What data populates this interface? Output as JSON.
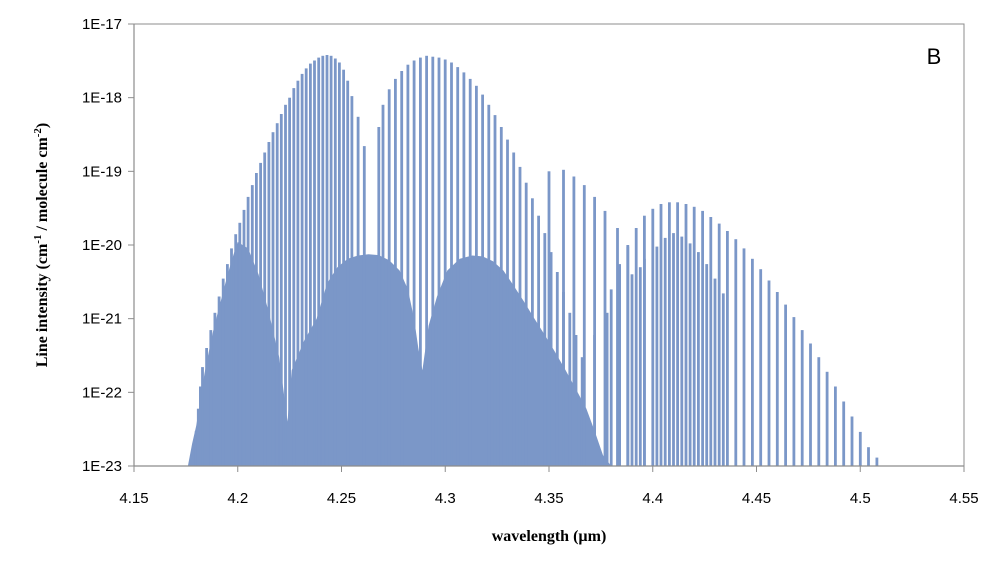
{
  "chart_data": {
    "type": "bar",
    "title": "",
    "panel_label": "B",
    "xlabel": "wavelength (µm)",
    "ylabel": "Line intensity (cm",
    "ylabel_sup1": "-1",
    "ylabel_mid": " / molecule cm",
    "ylabel_sup2": "-2",
    "ylabel_end": ")",
    "x_scale": "linear",
    "y_scale": "log",
    "xlim": [
      4.15,
      4.55
    ],
    "ylim": [
      1e-23,
      1e-17
    ],
    "x_ticks": [
      4.15,
      4.2,
      4.25,
      4.3,
      4.35,
      4.4,
      4.45,
      4.5,
      4.55
    ],
    "x_tick_labels": [
      "4.15",
      "4.2",
      "4.25",
      "4.3",
      "4.35",
      "4.4",
      "4.45",
      "4.5",
      "4.55"
    ],
    "y_ticks": [
      1e-23,
      1e-22,
      1e-21,
      1e-20,
      1e-19,
      1e-18,
      1e-17
    ],
    "y_tick_labels": [
      "1E-23",
      "1E-22",
      "1E-21",
      "1E-20",
      "1E-19",
      "1E-18",
      "1E-17"
    ],
    "grid": false,
    "bar_color": "#7b97c8",
    "series": [
      {
        "values": [
          [
            4.18,
            3e-23
          ],
          [
            4.181,
            6e-23
          ],
          [
            4.182,
            1.2e-22
          ],
          [
            4.183,
            2.2e-22
          ],
          [
            4.185,
            4e-22
          ],
          [
            4.187,
            7e-22
          ],
          [
            4.189,
            1.2e-21
          ],
          [
            4.191,
            2e-21
          ],
          [
            4.193,
            3.5e-21
          ],
          [
            4.195,
            5.5e-21
          ],
          [
            4.197,
            9e-21
          ],
          [
            4.199,
            1.4e-20
          ],
          [
            4.201,
            2e-20
          ],
          [
            4.203,
            3e-20
          ],
          [
            4.205,
            4.5e-20
          ],
          [
            4.207,
            6.5e-20
          ],
          [
            4.209,
            9.5e-20
          ],
          [
            4.211,
            1.3e-19
          ],
          [
            4.213,
            1.8e-19
          ],
          [
            4.215,
            2.5e-19
          ],
          [
            4.217,
            3.4e-19
          ],
          [
            4.219,
            4.5e-19
          ],
          [
            4.221,
            6e-19
          ],
          [
            4.223,
            8e-19
          ],
          [
            4.225,
            1e-18
          ],
          [
            4.227,
            1.35e-18
          ],
          [
            4.229,
            1.7e-18
          ],
          [
            4.231,
            2.1e-18
          ],
          [
            4.233,
            2.5e-18
          ],
          [
            4.235,
            2.9e-18
          ],
          [
            4.237,
            3.2e-18
          ],
          [
            4.239,
            3.5e-18
          ],
          [
            4.241,
            3.7e-18
          ],
          [
            4.243,
            3.8e-18
          ],
          [
            4.245,
            3.7e-18
          ],
          [
            4.247,
            3.4e-18
          ],
          [
            4.249,
            3e-18
          ],
          [
            4.251,
            2.4e-18
          ],
          [
            4.253,
            1.7e-18
          ],
          [
            4.255,
            1.05e-18
          ],
          [
            4.258,
            5.5e-19
          ],
          [
            4.261,
            2.2e-19
          ],
          [
            4.268,
            4e-19
          ],
          [
            4.27,
            8e-19
          ],
          [
            4.273,
            1.3e-18
          ],
          [
            4.276,
            1.8e-18
          ],
          [
            4.279,
            2.3e-18
          ],
          [
            4.282,
            2.8e-18
          ],
          [
            4.285,
            3.2e-18
          ],
          [
            4.288,
            3.5e-18
          ],
          [
            4.291,
            3.7e-18
          ],
          [
            4.294,
            3.6e-18
          ],
          [
            4.297,
            3.5e-18
          ],
          [
            4.3,
            3.3e-18
          ],
          [
            4.303,
            3e-18
          ],
          [
            4.306,
            2.6e-18
          ],
          [
            4.309,
            2.2e-18
          ],
          [
            4.312,
            1.8e-18
          ],
          [
            4.315,
            1.45e-18
          ],
          [
            4.318,
            1.1e-18
          ],
          [
            4.321,
            8e-19
          ],
          [
            4.324,
            5.8e-19
          ],
          [
            4.327,
            4e-19
          ],
          [
            4.33,
            2.7e-19
          ],
          [
            4.333,
            1.8e-19
          ],
          [
            4.336,
            1.15e-19
          ],
          [
            4.339,
            7e-20
          ],
          [
            4.342,
            4.3e-20
          ],
          [
            4.345,
            2.5e-20
          ],
          [
            4.348,
            1.45e-20
          ],
          [
            4.351,
            8e-21
          ],
          [
            4.354,
            4.3e-21
          ],
          [
            4.357,
            2.3e-21
          ],
          [
            4.36,
            1.2e-21
          ],
          [
            4.363,
            6e-22
          ],
          [
            4.366,
            3e-22
          ],
          [
            4.35,
            1e-19
          ],
          [
            4.357,
            1.05e-19
          ],
          [
            4.362,
            8.5e-20
          ],
          [
            4.367,
            6.5e-20
          ],
          [
            4.372,
            4.5e-20
          ],
          [
            4.377,
            2.9e-20
          ],
          [
            4.383,
            1.7e-20
          ],
          [
            4.388,
            9.5e-21
          ],
          [
            4.394,
            5e-21
          ],
          [
            4.372,
            6e-22
          ],
          [
            4.378,
            1.2e-21
          ],
          [
            4.384,
            2.3e-21
          ],
          [
            4.39,
            4e-21
          ],
          [
            4.396,
            6.5e-21
          ],
          [
            4.402,
            9.5e-21
          ],
          [
            4.406,
            1.25e-20
          ],
          [
            4.41,
            1.45e-20
          ],
          [
            4.414,
            1.3e-20
          ],
          [
            4.418,
            1.05e-20
          ],
          [
            4.422,
            8e-21
          ],
          [
            4.426,
            5.5e-21
          ],
          [
            4.43,
            3.5e-21
          ],
          [
            4.434,
            2.2e-21
          ],
          [
            4.38,
            2.5e-21
          ],
          [
            4.384,
            5.5e-21
          ],
          [
            4.388,
            1e-20
          ],
          [
            4.392,
            1.7e-20
          ],
          [
            4.396,
            2.5e-20
          ],
          [
            4.4,
            3.1e-20
          ],
          [
            4.404,
            3.6e-20
          ],
          [
            4.408,
            3.8e-20
          ],
          [
            4.412,
            3.8e-20
          ],
          [
            4.416,
            3.6e-20
          ],
          [
            4.42,
            3.3e-20
          ],
          [
            4.424,
            2.9e-20
          ],
          [
            4.428,
            2.4e-20
          ],
          [
            4.432,
            1.95e-20
          ],
          [
            4.436,
            1.55e-20
          ],
          [
            4.44,
            1.2e-20
          ],
          [
            4.444,
            9e-21
          ],
          [
            4.448,
            6.5e-21
          ],
          [
            4.452,
            4.7e-21
          ],
          [
            4.456,
            3.3e-21
          ],
          [
            4.46,
            2.3e-21
          ],
          [
            4.464,
            1.55e-21
          ],
          [
            4.468,
            1.05e-21
          ],
          [
            4.472,
            7e-22
          ],
          [
            4.476,
            4.6e-22
          ],
          [
            4.48,
            3e-22
          ],
          [
            4.484,
            1.9e-22
          ],
          [
            4.488,
            1.2e-22
          ],
          [
            4.492,
            7.5e-23
          ],
          [
            4.496,
            4.7e-23
          ],
          [
            4.5,
            2.9e-23
          ],
          [
            4.504,
            1.8e-23
          ],
          [
            4.508,
            1.3e-23
          ]
        ]
      }
    ],
    "envelope": [
      [
        4.176,
        1e-23
      ],
      [
        4.178,
        2e-23
      ],
      [
        4.18,
        3.5e-23
      ],
      [
        4.182,
        8e-23
      ],
      [
        4.184,
        1.8e-22
      ],
      [
        4.186,
        3.5e-22
      ],
      [
        4.188,
        6.5e-22
      ],
      [
        4.19,
        1.1e-21
      ],
      [
        4.192,
        1.8e-21
      ],
      [
        4.194,
        3e-21
      ],
      [
        4.196,
        4.8e-21
      ],
      [
        4.198,
        7.5e-21
      ],
      [
        4.2,
        1.1e-20
      ],
      [
        4.205,
        9e-21
      ],
      [
        4.21,
        4e-21
      ],
      [
        4.215,
        1.2e-21
      ],
      [
        4.22,
        3e-22
      ],
      [
        4.224,
        4e-23
      ],
      [
        4.226,
        2e-22
      ],
      [
        4.232,
        5e-22
      ],
      [
        4.238,
        1e-21
      ],
      [
        4.243,
        3e-21
      ],
      [
        4.248,
        5e-21
      ],
      [
        4.253,
        6.5e-21
      ],
      [
        4.258,
        7.2e-21
      ],
      [
        4.263,
        7.5e-21
      ],
      [
        4.268,
        7.3e-21
      ],
      [
        4.273,
        6.2e-21
      ],
      [
        4.278,
        4.5e-21
      ],
      [
        4.282,
        2.5e-21
      ],
      [
        4.285,
        1e-21
      ],
      [
        4.287,
        4e-22
      ],
      [
        4.289,
        2e-22
      ],
      [
        4.292,
        8e-22
      ],
      [
        4.296,
        2e-21
      ],
      [
        4.301,
        4.5e-21
      ],
      [
        4.307,
        6.5e-21
      ],
      [
        4.313,
        7.2e-21
      ],
      [
        4.318,
        7e-21
      ],
      [
        4.323,
        6e-21
      ],
      [
        4.328,
        4.5e-21
      ],
      [
        4.333,
        2.8e-21
      ],
      [
        4.338,
        1.7e-21
      ],
      [
        4.343,
        1e-21
      ],
      [
        4.348,
        6e-22
      ],
      [
        4.353,
        3.5e-22
      ],
      [
        4.358,
        2e-22
      ],
      [
        4.363,
        1.1e-22
      ],
      [
        4.368,
        6e-23
      ],
      [
        4.372,
        3e-23
      ],
      [
        4.376,
        1.4e-23
      ],
      [
        4.38,
        1e-23
      ]
    ]
  }
}
